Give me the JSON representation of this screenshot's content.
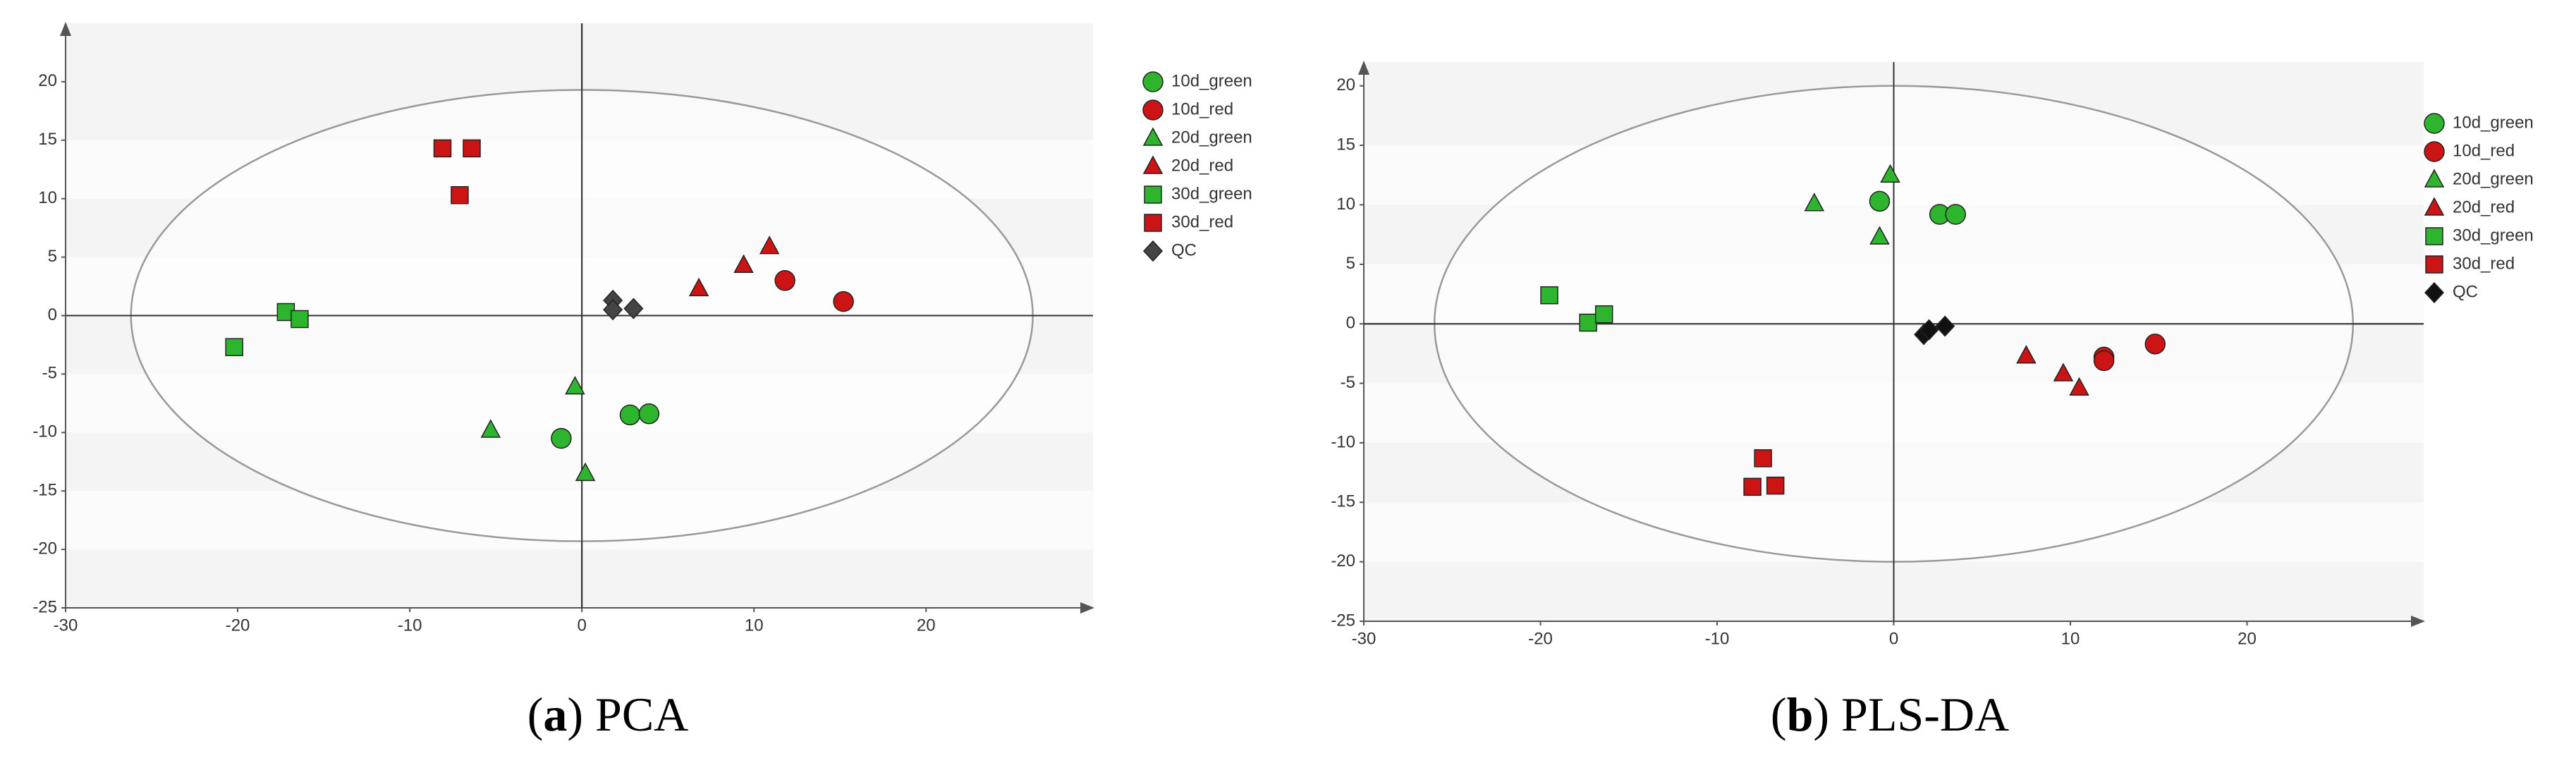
{
  "chart_data": [
    {
      "type": "scatter",
      "caption_parts": [
        "(",
        "a",
        ") PCA"
      ],
      "xlim": [
        -30,
        29.7
      ],
      "ylim": [
        -25,
        25
      ],
      "xticks": [
        -30,
        -20,
        -10,
        0,
        10,
        20
      ],
      "yticks": [
        -25,
        -20,
        -15,
        -10,
        -5,
        0,
        5,
        10,
        15,
        20
      ],
      "ellipse_radii": [
        26.2,
        19.3
      ],
      "series": [
        {
          "name": "10d_green",
          "color": "#2db52d",
          "marker": "circle",
          "x": [
            -1.2,
            2.8,
            3.9
          ],
          "y": [
            -10.5,
            -8.5,
            -8.4
          ]
        },
        {
          "name": "10d_red",
          "color": "#cc1414",
          "marker": "circle",
          "x": [
            11.8,
            15.2
          ],
          "y": [
            3.0,
            1.2
          ]
        },
        {
          "name": "20d_green",
          "color": "#2db52d",
          "marker": "triangle",
          "x": [
            -5.3,
            -0.4,
            0.2
          ],
          "y": [
            -9.8,
            -6.1,
            -13.5
          ]
        },
        {
          "name": "20d_red",
          "color": "#cc1414",
          "marker": "triangle",
          "x": [
            6.8,
            9.4,
            10.9
          ],
          "y": [
            2.3,
            4.3,
            5.9
          ]
        },
        {
          "name": "30d_green",
          "color": "#2db52d",
          "marker": "square",
          "x": [
            -20.2,
            -17.2,
            -16.4
          ],
          "y": [
            -2.7,
            0.3,
            -0.3
          ]
        },
        {
          "name": "30d_red",
          "color": "#cc1414",
          "marker": "square",
          "x": [
            -8.1,
            -6.4,
            -7.1
          ],
          "y": [
            14.3,
            14.3,
            10.3
          ]
        },
        {
          "name": "QC",
          "color": "#444444",
          "marker": "diamond",
          "x": [
            1.8,
            1.8,
            3.0
          ],
          "y": [
            1.3,
            0.5,
            0.6
          ]
        }
      ]
    },
    {
      "type": "scatter",
      "caption_parts": [
        "(",
        "b",
        ") PLS-DA"
      ],
      "xlim": [
        -30,
        30
      ],
      "ylim": [
        -25,
        22
      ],
      "xticks": [
        -30,
        -20,
        -10,
        0,
        10,
        20
      ],
      "yticks": [
        -25,
        -20,
        -15,
        -10,
        -5,
        0,
        5,
        10,
        15,
        20
      ],
      "ellipse_radii": [
        26,
        20
      ],
      "series": [
        {
          "name": "10d_green",
          "color": "#2db52d",
          "marker": "circle",
          "x": [
            -0.8,
            2.6,
            3.5
          ],
          "y": [
            10.3,
            9.2,
            9.2
          ]
        },
        {
          "name": "10d_red",
          "color": "#cc1414",
          "marker": "circle",
          "x": [
            11.9,
            11.9,
            14.8
          ],
          "y": [
            -2.8,
            -3.1,
            -1.7
          ]
        },
        {
          "name": "20d_green",
          "color": "#2db52d",
          "marker": "triangle",
          "x": [
            -4.5,
            -0.2,
            -0.8
          ],
          "y": [
            10.1,
            12.5,
            7.3
          ]
        },
        {
          "name": "20d_red",
          "color": "#cc1414",
          "marker": "triangle",
          "x": [
            7.5,
            9.6,
            10.5
          ],
          "y": [
            -2.7,
            -4.2,
            -5.4
          ]
        },
        {
          "name": "30d_green",
          "color": "#2db52d",
          "marker": "square",
          "x": [
            -19.5,
            -17.3,
            -16.4
          ],
          "y": [
            2.4,
            0.1,
            0.8
          ]
        },
        {
          "name": "30d_red",
          "color": "#cc1414",
          "marker": "square",
          "x": [
            -7.4,
            -8.0,
            -6.7
          ],
          "y": [
            -11.3,
            -13.7,
            -13.6
          ]
        },
        {
          "name": "QC",
          "color": "#111111",
          "marker": "diamond",
          "x": [
            1.7,
            2.0,
            2.9
          ],
          "y": [
            -0.9,
            -0.5,
            -0.2
          ]
        }
      ]
    }
  ]
}
